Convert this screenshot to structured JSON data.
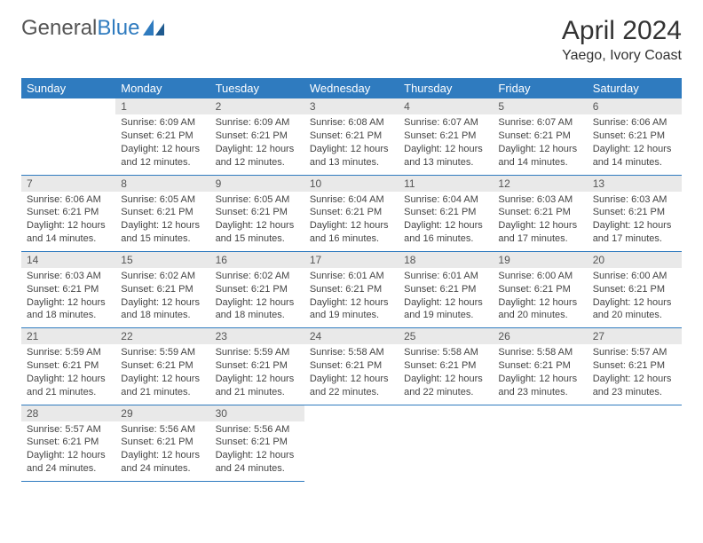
{
  "logo": {
    "text_gray": "General",
    "text_blue": "Blue"
  },
  "title": "April 2024",
  "location": "Yaego, Ivory Coast",
  "colors": {
    "header_bg": "#2f7bbf",
    "header_fg": "#ffffff",
    "daynum_bg": "#e9e9e9",
    "rule": "#2f7bbf",
    "logo_gray": "#555555",
    "logo_blue": "#2f7bbf"
  },
  "weekdays": [
    "Sunday",
    "Monday",
    "Tuesday",
    "Wednesday",
    "Thursday",
    "Friday",
    "Saturday"
  ],
  "weeks": [
    [
      null,
      {
        "n": "1",
        "sr": "Sunrise: 6:09 AM",
        "ss": "Sunset: 6:21 PM",
        "d1": "Daylight: 12 hours",
        "d2": "and 12 minutes."
      },
      {
        "n": "2",
        "sr": "Sunrise: 6:09 AM",
        "ss": "Sunset: 6:21 PM",
        "d1": "Daylight: 12 hours",
        "d2": "and 12 minutes."
      },
      {
        "n": "3",
        "sr": "Sunrise: 6:08 AM",
        "ss": "Sunset: 6:21 PM",
        "d1": "Daylight: 12 hours",
        "d2": "and 13 minutes."
      },
      {
        "n": "4",
        "sr": "Sunrise: 6:07 AM",
        "ss": "Sunset: 6:21 PM",
        "d1": "Daylight: 12 hours",
        "d2": "and 13 minutes."
      },
      {
        "n": "5",
        "sr": "Sunrise: 6:07 AM",
        "ss": "Sunset: 6:21 PM",
        "d1": "Daylight: 12 hours",
        "d2": "and 14 minutes."
      },
      {
        "n": "6",
        "sr": "Sunrise: 6:06 AM",
        "ss": "Sunset: 6:21 PM",
        "d1": "Daylight: 12 hours",
        "d2": "and 14 minutes."
      }
    ],
    [
      {
        "n": "7",
        "sr": "Sunrise: 6:06 AM",
        "ss": "Sunset: 6:21 PM",
        "d1": "Daylight: 12 hours",
        "d2": "and 14 minutes."
      },
      {
        "n": "8",
        "sr": "Sunrise: 6:05 AM",
        "ss": "Sunset: 6:21 PM",
        "d1": "Daylight: 12 hours",
        "d2": "and 15 minutes."
      },
      {
        "n": "9",
        "sr": "Sunrise: 6:05 AM",
        "ss": "Sunset: 6:21 PM",
        "d1": "Daylight: 12 hours",
        "d2": "and 15 minutes."
      },
      {
        "n": "10",
        "sr": "Sunrise: 6:04 AM",
        "ss": "Sunset: 6:21 PM",
        "d1": "Daylight: 12 hours",
        "d2": "and 16 minutes."
      },
      {
        "n": "11",
        "sr": "Sunrise: 6:04 AM",
        "ss": "Sunset: 6:21 PM",
        "d1": "Daylight: 12 hours",
        "d2": "and 16 minutes."
      },
      {
        "n": "12",
        "sr": "Sunrise: 6:03 AM",
        "ss": "Sunset: 6:21 PM",
        "d1": "Daylight: 12 hours",
        "d2": "and 17 minutes."
      },
      {
        "n": "13",
        "sr": "Sunrise: 6:03 AM",
        "ss": "Sunset: 6:21 PM",
        "d1": "Daylight: 12 hours",
        "d2": "and 17 minutes."
      }
    ],
    [
      {
        "n": "14",
        "sr": "Sunrise: 6:03 AM",
        "ss": "Sunset: 6:21 PM",
        "d1": "Daylight: 12 hours",
        "d2": "and 18 minutes."
      },
      {
        "n": "15",
        "sr": "Sunrise: 6:02 AM",
        "ss": "Sunset: 6:21 PM",
        "d1": "Daylight: 12 hours",
        "d2": "and 18 minutes."
      },
      {
        "n": "16",
        "sr": "Sunrise: 6:02 AM",
        "ss": "Sunset: 6:21 PM",
        "d1": "Daylight: 12 hours",
        "d2": "and 18 minutes."
      },
      {
        "n": "17",
        "sr": "Sunrise: 6:01 AM",
        "ss": "Sunset: 6:21 PM",
        "d1": "Daylight: 12 hours",
        "d2": "and 19 minutes."
      },
      {
        "n": "18",
        "sr": "Sunrise: 6:01 AM",
        "ss": "Sunset: 6:21 PM",
        "d1": "Daylight: 12 hours",
        "d2": "and 19 minutes."
      },
      {
        "n": "19",
        "sr": "Sunrise: 6:00 AM",
        "ss": "Sunset: 6:21 PM",
        "d1": "Daylight: 12 hours",
        "d2": "and 20 minutes."
      },
      {
        "n": "20",
        "sr": "Sunrise: 6:00 AM",
        "ss": "Sunset: 6:21 PM",
        "d1": "Daylight: 12 hours",
        "d2": "and 20 minutes."
      }
    ],
    [
      {
        "n": "21",
        "sr": "Sunrise: 5:59 AM",
        "ss": "Sunset: 6:21 PM",
        "d1": "Daylight: 12 hours",
        "d2": "and 21 minutes."
      },
      {
        "n": "22",
        "sr": "Sunrise: 5:59 AM",
        "ss": "Sunset: 6:21 PM",
        "d1": "Daylight: 12 hours",
        "d2": "and 21 minutes."
      },
      {
        "n": "23",
        "sr": "Sunrise: 5:59 AM",
        "ss": "Sunset: 6:21 PM",
        "d1": "Daylight: 12 hours",
        "d2": "and 21 minutes."
      },
      {
        "n": "24",
        "sr": "Sunrise: 5:58 AM",
        "ss": "Sunset: 6:21 PM",
        "d1": "Daylight: 12 hours",
        "d2": "and 22 minutes."
      },
      {
        "n": "25",
        "sr": "Sunrise: 5:58 AM",
        "ss": "Sunset: 6:21 PM",
        "d1": "Daylight: 12 hours",
        "d2": "and 22 minutes."
      },
      {
        "n": "26",
        "sr": "Sunrise: 5:58 AM",
        "ss": "Sunset: 6:21 PM",
        "d1": "Daylight: 12 hours",
        "d2": "and 23 minutes."
      },
      {
        "n": "27",
        "sr": "Sunrise: 5:57 AM",
        "ss": "Sunset: 6:21 PM",
        "d1": "Daylight: 12 hours",
        "d2": "and 23 minutes."
      }
    ],
    [
      {
        "n": "28",
        "sr": "Sunrise: 5:57 AM",
        "ss": "Sunset: 6:21 PM",
        "d1": "Daylight: 12 hours",
        "d2": "and 24 minutes."
      },
      {
        "n": "29",
        "sr": "Sunrise: 5:56 AM",
        "ss": "Sunset: 6:21 PM",
        "d1": "Daylight: 12 hours",
        "d2": "and 24 minutes."
      },
      {
        "n": "30",
        "sr": "Sunrise: 5:56 AM",
        "ss": "Sunset: 6:21 PM",
        "d1": "Daylight: 12 hours",
        "d2": "and 24 minutes."
      },
      null,
      null,
      null,
      null
    ]
  ]
}
